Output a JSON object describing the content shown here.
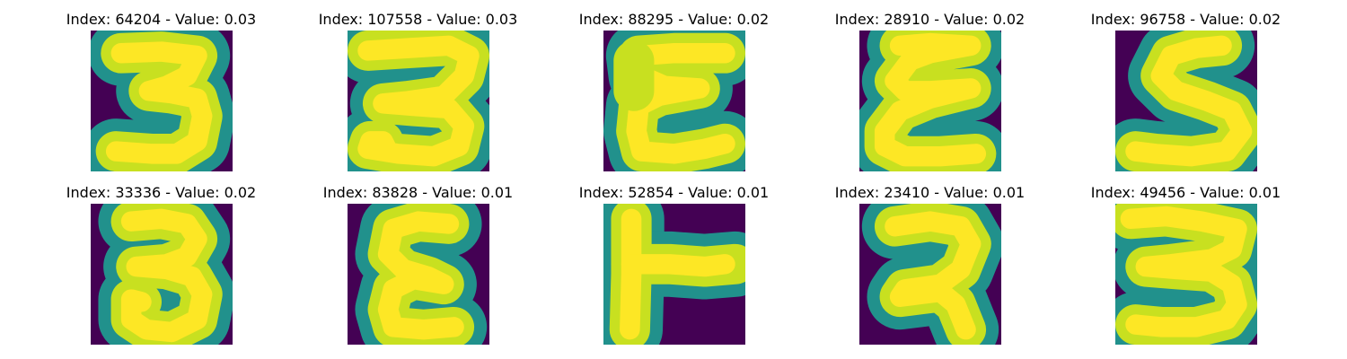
{
  "panels": [
    {
      "title": "Index: 64204 - Value: 0.03",
      "glyph": "three-a"
    },
    {
      "title": "Index: 107558 - Value: 0.03",
      "glyph": "three-b"
    },
    {
      "title": "Index: 88295 - Value: 0.02",
      "glyph": "epsilon-a"
    },
    {
      "title": "Index: 28910 - Value: 0.02",
      "glyph": "epsilon-b"
    },
    {
      "title": "Index: 96758 - Value: 0.02",
      "glyph": "s-shape"
    },
    {
      "title": "Index: 33336 - Value: 0.02",
      "glyph": "three-c"
    },
    {
      "title": "Index: 83828 - Value: 0.01",
      "glyph": "epsilon-c"
    },
    {
      "title": "Index: 52854 - Value: 0.01",
      "glyph": "t-rotated"
    },
    {
      "title": "Index: 23410 - Value: 0.01",
      "glyph": "two-loop"
    },
    {
      "title": "Index: 49456 - Value: 0.01",
      "glyph": "three-d"
    }
  ],
  "colors": {
    "background": "#440154",
    "edge": "#21918c",
    "mid": "#c8e020",
    "peak": "#fde725"
  }
}
